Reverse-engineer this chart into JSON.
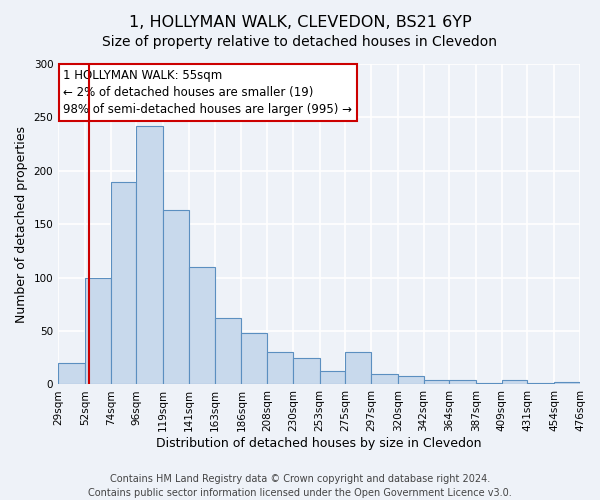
{
  "title": "1, HOLLYMAN WALK, CLEVEDON, BS21 6YP",
  "subtitle": "Size of property relative to detached houses in Clevedon",
  "xlabel": "Distribution of detached houses by size in Clevedon",
  "ylabel": "Number of detached properties",
  "bin_edges": [
    29,
    52,
    74,
    96,
    119,
    141,
    163,
    186,
    208,
    230,
    253,
    275,
    297,
    320,
    342,
    364,
    387,
    409,
    431,
    454,
    476
  ],
  "bar_heights": [
    20,
    100,
    190,
    242,
    163,
    110,
    62,
    48,
    30,
    25,
    13,
    30,
    10,
    8,
    4,
    4,
    1,
    4,
    1,
    2
  ],
  "bar_facecolor": "#c8d9ec",
  "bar_edgecolor": "#5b8fc0",
  "property_line_x": 55,
  "property_line_color": "#cc0000",
  "annotation_line1": "1 HOLLYMAN WALK: 55sqm",
  "annotation_line2": "← 2% of detached houses are smaller (19)",
  "annotation_line3": "98% of semi-detached houses are larger (995) →",
  "annotation_box_facecolor": "#ffffff",
  "annotation_box_edgecolor": "#cc0000",
  "ylim": [
    0,
    300
  ],
  "yticks": [
    0,
    50,
    100,
    150,
    200,
    250,
    300
  ],
  "tick_labels": [
    "29sqm",
    "52sqm",
    "74sqm",
    "96sqm",
    "119sqm",
    "141sqm",
    "163sqm",
    "186sqm",
    "208sqm",
    "230sqm",
    "253sqm",
    "275sqm",
    "297sqm",
    "320sqm",
    "342sqm",
    "364sqm",
    "387sqm",
    "409sqm",
    "431sqm",
    "454sqm",
    "476sqm"
  ],
  "footer_line1": "Contains HM Land Registry data © Crown copyright and database right 2024.",
  "footer_line2": "Contains public sector information licensed under the Open Government Licence v3.0.",
  "background_color": "#eef2f8",
  "grid_color": "#ffffff",
  "title_fontsize": 11.5,
  "subtitle_fontsize": 10,
  "label_fontsize": 9,
  "footer_fontsize": 7,
  "tick_fontsize": 7.5,
  "annotation_fontsize": 8.5
}
